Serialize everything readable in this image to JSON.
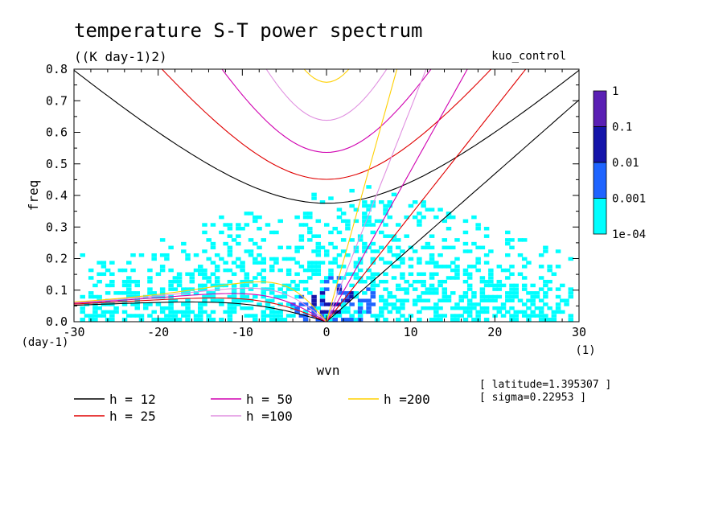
{
  "chart_data": {
    "type": "line",
    "title": "temperature S-T power spectrum",
    "subtitle": "((K day-1)2)",
    "run_label": "kuo_control",
    "xlabel": "wvn",
    "ylabel": "freq",
    "x_unit": "(1)",
    "y_unit": "(day-1)",
    "xlim": [
      -30,
      30
    ],
    "ylim": [
      0,
      0.8
    ],
    "xticks": [
      "-30",
      "-20",
      "-10",
      "0",
      "10",
      "20",
      "30"
    ],
    "yticks": [
      "0.0",
      "0.1",
      "0.2",
      "0.3",
      "0.4",
      "0.5",
      "0.6",
      "0.7",
      "0.8"
    ],
    "colorbar": {
      "levels": [
        "1",
        "0.1",
        "0.01",
        "0.001",
        "1e-04"
      ],
      "colors": [
        "#5a1fb4",
        "#1414aa",
        "#1e64ff",
        "#00ffff"
      ]
    },
    "info": [
      "[ latitude=1.395307 ]",
      "[ sigma=0.22953 ]"
    ],
    "series": [
      {
        "name": "h = 12",
        "color": "#000000"
      },
      {
        "name": "h = 25",
        "color": "#e00000"
      },
      {
        "name": "h = 50",
        "color": "#d000b0"
      },
      {
        "name": "h =100",
        "color": "#e090e0"
      },
      {
        "name": "h =200",
        "color": "#ffd000"
      }
    ]
  }
}
